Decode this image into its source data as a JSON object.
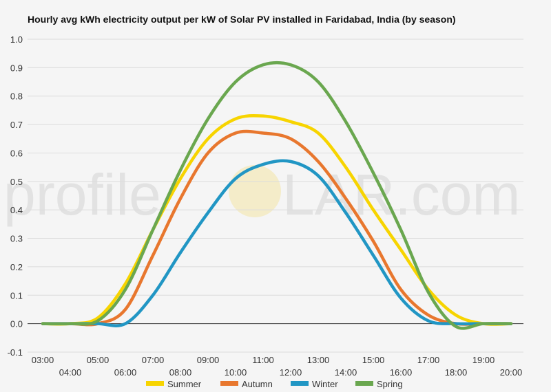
{
  "chart_data": {
    "type": "line",
    "title": "Hourly avg kWh electricity output per kW of Solar PV installed in Faridabad, India (by season)",
    "xlabel": "",
    "ylabel": "",
    "x": [
      "03:00",
      "04:00",
      "05:00",
      "06:00",
      "07:00",
      "08:00",
      "09:00",
      "10:00",
      "11:00",
      "12:00",
      "13:00",
      "14:00",
      "15:00",
      "16:00",
      "17:00",
      "18:00",
      "19:00",
      "20:00"
    ],
    "ylim": [
      -0.1,
      1.0
    ],
    "yticks": [
      "1.0",
      "0.9",
      "0.8",
      "0.7",
      "0.6",
      "0.5",
      "0.4",
      "0.3",
      "0.2",
      "0.1",
      "0.0",
      "-0.1"
    ],
    "grid": true,
    "legend_position": "bottom",
    "series": [
      {
        "name": "Summer",
        "color": "#f7d400",
        "values": [
          0.0,
          0.0,
          0.02,
          0.14,
          0.33,
          0.51,
          0.65,
          0.72,
          0.73,
          0.71,
          0.67,
          0.55,
          0.4,
          0.26,
          0.12,
          0.03,
          0.0,
          0.0
        ]
      },
      {
        "name": "Autumn",
        "color": "#e8772e",
        "values": [
          0.0,
          0.0,
          0.0,
          0.05,
          0.24,
          0.44,
          0.6,
          0.67,
          0.67,
          0.65,
          0.57,
          0.44,
          0.29,
          0.12,
          0.03,
          0.0,
          0.0,
          0.0
        ]
      },
      {
        "name": "Winter",
        "color": "#2196c4",
        "values": [
          0.0,
          0.0,
          0.0,
          0.0,
          0.1,
          0.25,
          0.39,
          0.51,
          0.56,
          0.57,
          0.52,
          0.39,
          0.24,
          0.09,
          0.01,
          0.0,
          0.0,
          0.0
        ]
      },
      {
        "name": "Spring",
        "color": "#6aa74f",
        "values": [
          0.0,
          0.0,
          0.01,
          0.12,
          0.33,
          0.54,
          0.72,
          0.85,
          0.91,
          0.91,
          0.85,
          0.71,
          0.53,
          0.33,
          0.11,
          -0.01,
          0.0,
          0.0
        ]
      }
    ]
  },
  "watermark": {
    "left": "profile",
    "right": "LAR.com",
    "sun_color": "#f2cc2e"
  }
}
